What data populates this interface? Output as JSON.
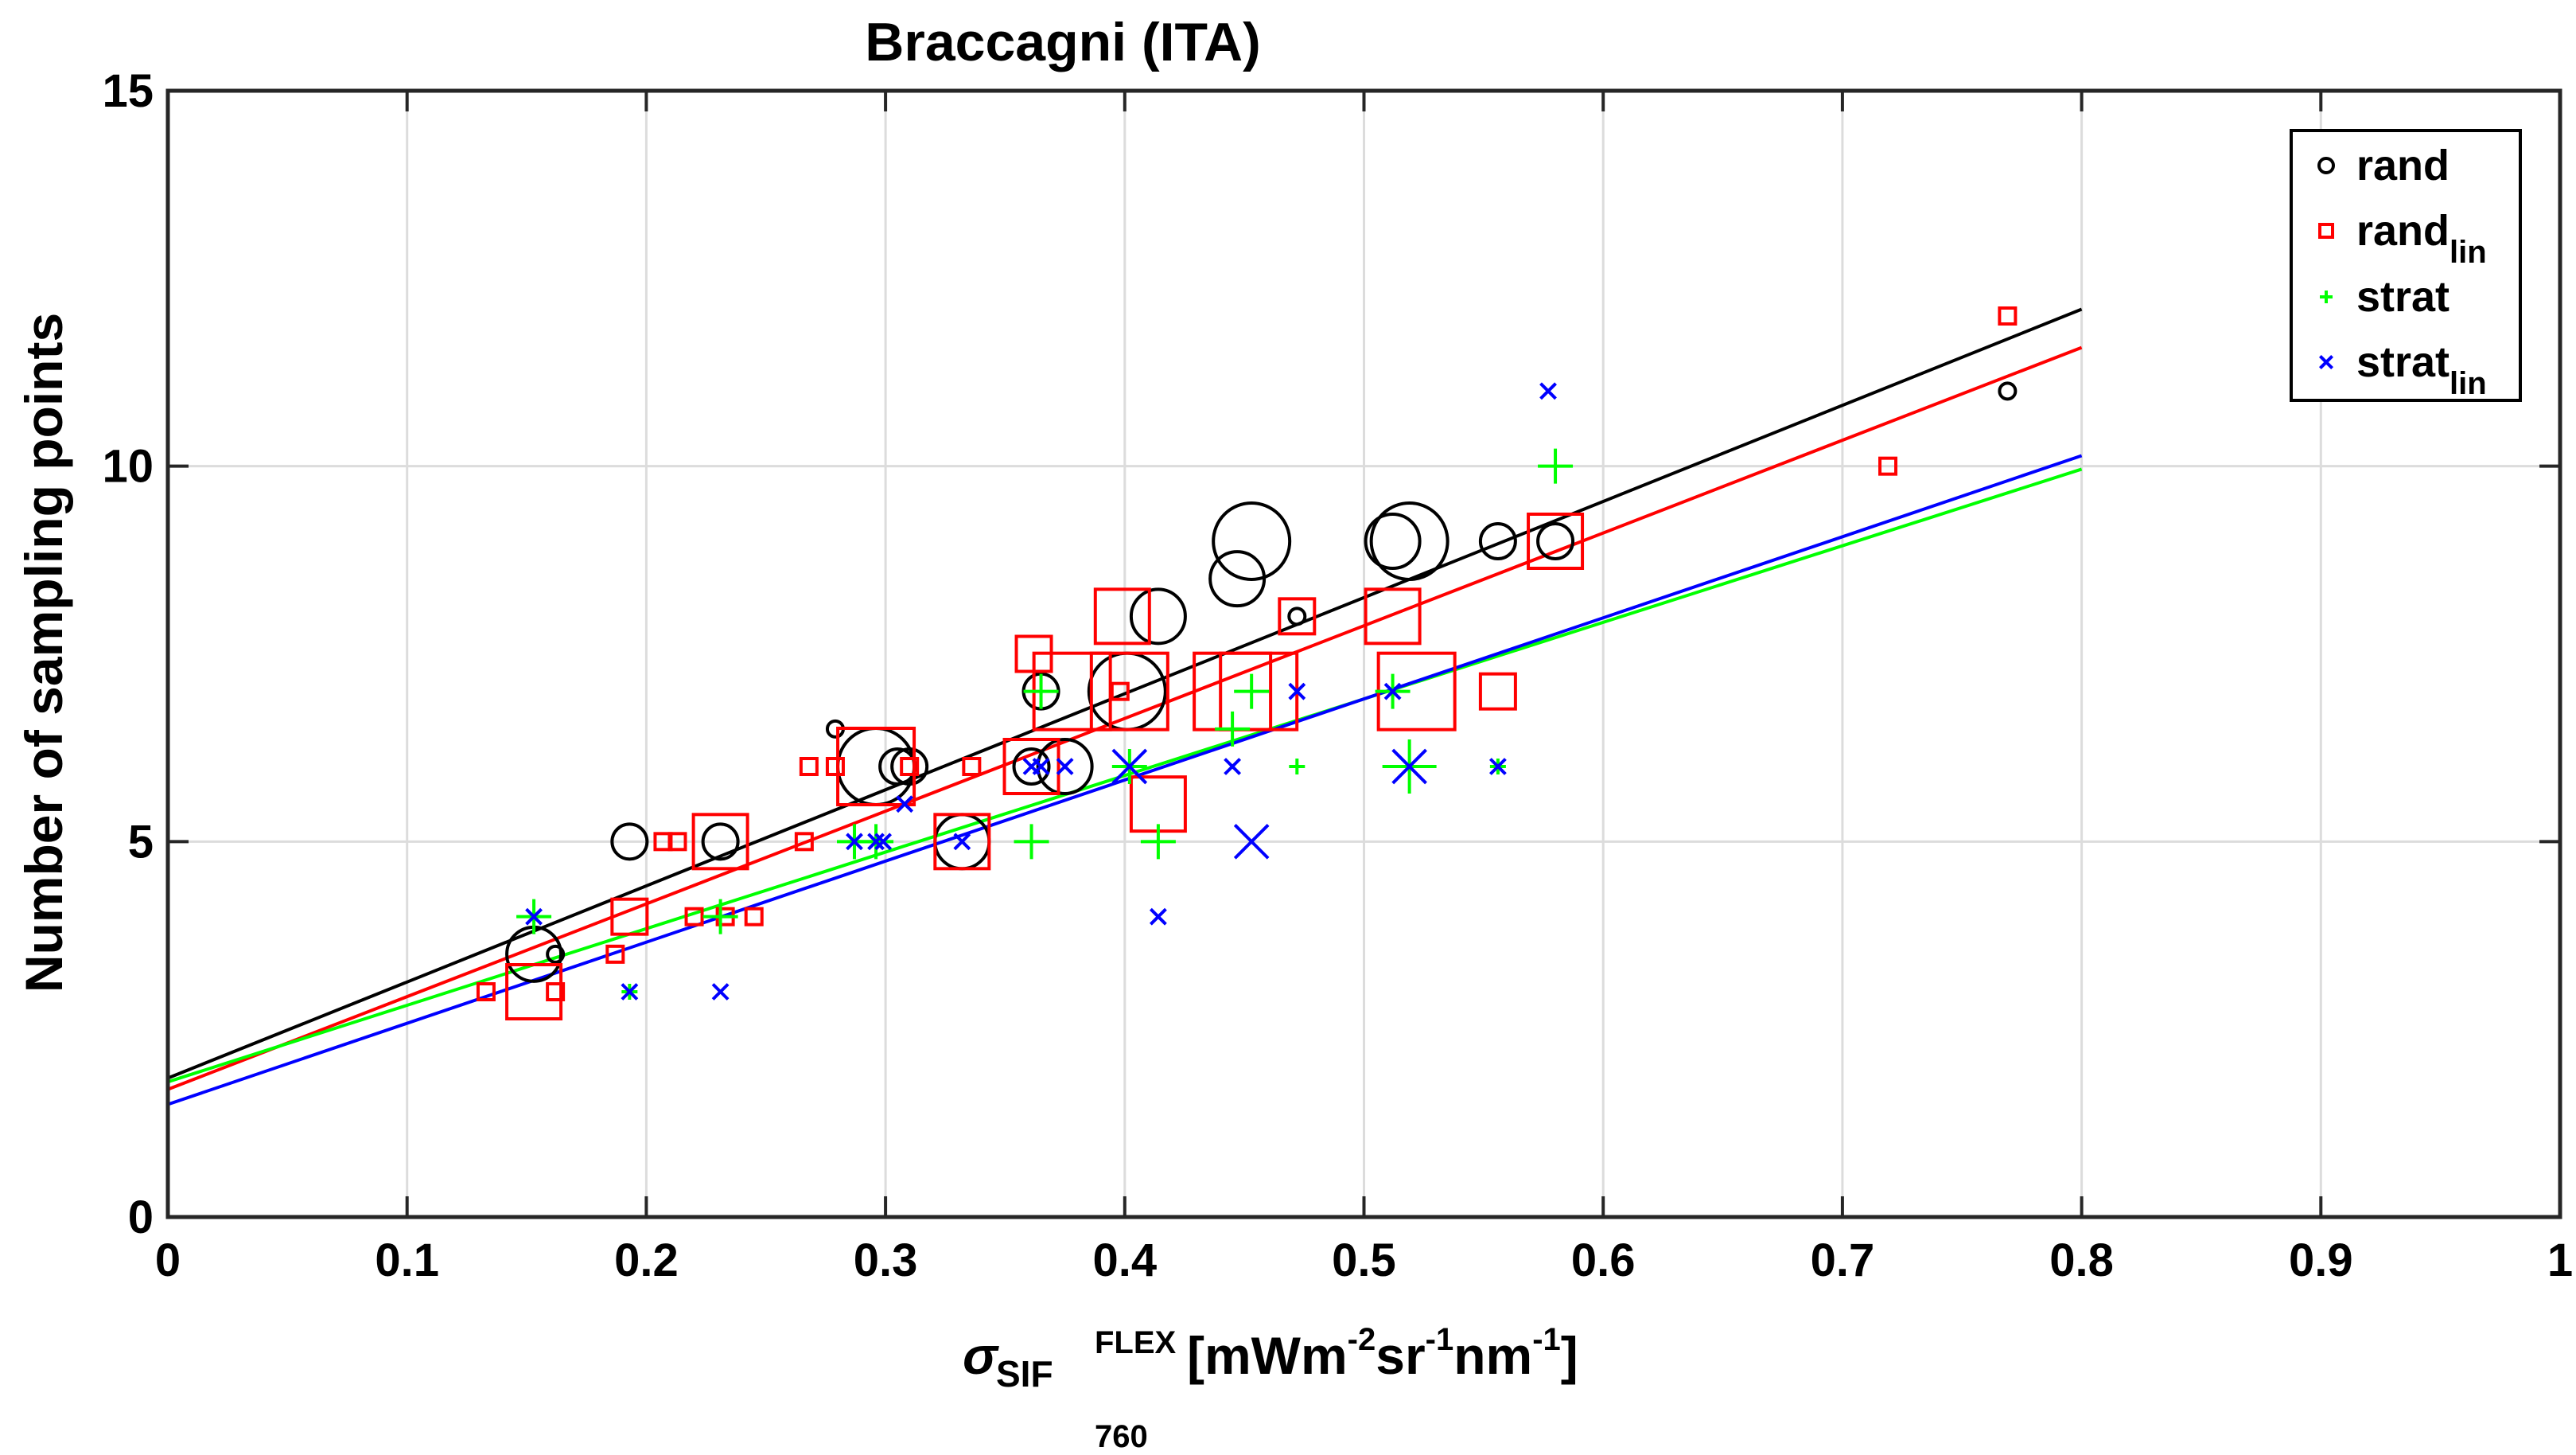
{
  "chart_data": {
    "type": "scatter",
    "title": "Braccagni (ITA)",
    "ylabel": "Number of sampling points",
    "xlabel": {
      "sigma": "σ",
      "sif": "SIF",
      "sup": "FLEX",
      "sub": "760",
      "unit_open": " [mWm",
      "exp1": "-2",
      "sr": "sr",
      "exp2": "-1",
      "nm": "nm",
      "exp3": "-1",
      "unit_close": "]"
    },
    "xlim": [
      0,
      1
    ],
    "ylim": [
      0,
      15
    ],
    "xticks": [
      0,
      0.1,
      0.2,
      0.3,
      0.4,
      0.5,
      0.6,
      0.7,
      0.8,
      0.9,
      1
    ],
    "xtick_labels": [
      "0",
      "0.1",
      "0.2",
      "0.3",
      "0.4",
      "0.5",
      "0.6",
      "0.7",
      "0.8",
      "0.9",
      "1"
    ],
    "yticks": [
      0,
      5,
      10,
      15
    ],
    "ytick_labels": [
      "0",
      "5",
      "10",
      "15"
    ],
    "grid": true,
    "legend_position": "top-right",
    "series": [
      {
        "name": "rand",
        "sub": "",
        "marker": "circle",
        "color": "#000000",
        "fit": {
          "intercept": 1.85,
          "slope": 12.8,
          "x_range": [
            0,
            0.8
          ]
        },
        "points": [
          {
            "x": 0.153,
            "y": 3.5,
            "size": 3
          },
          {
            "x": 0.162,
            "y": 3.5,
            "size": 1
          },
          {
            "x": 0.193,
            "y": 5,
            "size": 2
          },
          {
            "x": 0.231,
            "y": 5,
            "size": 2
          },
          {
            "x": 0.279,
            "y": 6.5,
            "size": 1
          },
          {
            "x": 0.296,
            "y": 6,
            "size": 4
          },
          {
            "x": 0.305,
            "y": 6,
            "size": 2
          },
          {
            "x": 0.31,
            "y": 6,
            "size": 2
          },
          {
            "x": 0.332,
            "y": 5,
            "size": 3
          },
          {
            "x": 0.361,
            "y": 6,
            "size": 2
          },
          {
            "x": 0.365,
            "y": 7,
            "size": 2
          },
          {
            "x": 0.375,
            "y": 6,
            "size": 3
          },
          {
            "x": 0.401,
            "y": 7,
            "size": 4
          },
          {
            "x": 0.414,
            "y": 8,
            "size": 3
          },
          {
            "x": 0.447,
            "y": 8.5,
            "size": 3
          },
          {
            "x": 0.453,
            "y": 9,
            "size": 4
          },
          {
            "x": 0.472,
            "y": 8,
            "size": 1
          },
          {
            "x": 0.512,
            "y": 9,
            "size": 3
          },
          {
            "x": 0.519,
            "y": 9,
            "size": 4
          },
          {
            "x": 0.556,
            "y": 9,
            "size": 2
          },
          {
            "x": 0.58,
            "y": 9,
            "size": 2
          },
          {
            "x": 0.769,
            "y": 11,
            "size": 1
          }
        ]
      },
      {
        "name": "rand",
        "sub": "lin",
        "marker": "square",
        "color": "#ff0000",
        "fit": {
          "intercept": 1.7,
          "slope": 12.35,
          "x_range": [
            0,
            0.8
          ]
        },
        "points": [
          {
            "x": 0.133,
            "y": 3,
            "size": 1
          },
          {
            "x": 0.153,
            "y": 3,
            "size": 3
          },
          {
            "x": 0.162,
            "y": 3,
            "size": 1
          },
          {
            "x": 0.187,
            "y": 3.5,
            "size": 1
          },
          {
            "x": 0.193,
            "y": 4,
            "size": 2
          },
          {
            "x": 0.207,
            "y": 5,
            "size": 1
          },
          {
            "x": 0.213,
            "y": 5,
            "size": 1
          },
          {
            "x": 0.22,
            "y": 4,
            "size": 1
          },
          {
            "x": 0.231,
            "y": 5,
            "size": 3
          },
          {
            "x": 0.233,
            "y": 4,
            "size": 1
          },
          {
            "x": 0.245,
            "y": 4,
            "size": 1
          },
          {
            "x": 0.266,
            "y": 5,
            "size": 1
          },
          {
            "x": 0.268,
            "y": 6,
            "size": 1
          },
          {
            "x": 0.279,
            "y": 6,
            "size": 1
          },
          {
            "x": 0.296,
            "y": 6,
            "size": 4
          },
          {
            "x": 0.31,
            "y": 6,
            "size": 1
          },
          {
            "x": 0.332,
            "y": 5,
            "size": 3
          },
          {
            "x": 0.336,
            "y": 6,
            "size": 1
          },
          {
            "x": 0.361,
            "y": 6,
            "size": 3
          },
          {
            "x": 0.362,
            "y": 7.5,
            "size": 2
          },
          {
            "x": 0.378,
            "y": 7,
            "size": 4
          },
          {
            "x": 0.398,
            "y": 7,
            "size": 1
          },
          {
            "x": 0.399,
            "y": 8,
            "size": 3
          },
          {
            "x": 0.402,
            "y": 7,
            "size": 4
          },
          {
            "x": 0.414,
            "y": 5.5,
            "size": 3
          },
          {
            "x": 0.445,
            "y": 7,
            "size": 4
          },
          {
            "x": 0.456,
            "y": 7,
            "size": 4
          },
          {
            "x": 0.472,
            "y": 8,
            "size": 2
          },
          {
            "x": 0.512,
            "y": 8,
            "size": 3
          },
          {
            "x": 0.522,
            "y": 7,
            "size": 4
          },
          {
            "x": 0.556,
            "y": 7,
            "size": 2
          },
          {
            "x": 0.58,
            "y": 9,
            "size": 3
          },
          {
            "x": 0.719,
            "y": 10,
            "size": 1
          },
          {
            "x": 0.769,
            "y": 12,
            "size": 1
          }
        ]
      },
      {
        "name": "strat",
        "sub": "",
        "marker": "plus",
        "color": "#00ff00",
        "fit": {
          "intercept": 1.8,
          "slope": 10.2,
          "x_range": [
            0,
            0.8
          ]
        },
        "points": [
          {
            "x": 0.153,
            "y": 4,
            "size": 2
          },
          {
            "x": 0.193,
            "y": 3,
            "size": 1
          },
          {
            "x": 0.231,
            "y": 4,
            "size": 2
          },
          {
            "x": 0.287,
            "y": 5,
            "size": 2
          },
          {
            "x": 0.296,
            "y": 5,
            "size": 2
          },
          {
            "x": 0.361,
            "y": 5,
            "size": 2
          },
          {
            "x": 0.365,
            "y": 7,
            "size": 2
          },
          {
            "x": 0.402,
            "y": 6,
            "size": 2
          },
          {
            "x": 0.414,
            "y": 5,
            "size": 2
          },
          {
            "x": 0.445,
            "y": 6.5,
            "size": 2
          },
          {
            "x": 0.453,
            "y": 7,
            "size": 2
          },
          {
            "x": 0.472,
            "y": 6,
            "size": 1
          },
          {
            "x": 0.512,
            "y": 7,
            "size": 2
          },
          {
            "x": 0.519,
            "y": 6,
            "size": 3
          },
          {
            "x": 0.556,
            "y": 6,
            "size": 1
          },
          {
            "x": 0.58,
            "y": 10,
            "size": 2
          }
        ]
      },
      {
        "name": "strat",
        "sub": "lin",
        "marker": "cross",
        "color": "#0000ff",
        "fit": {
          "intercept": 1.5,
          "slope": 10.8,
          "x_range": [
            0,
            0.8
          ]
        },
        "points": [
          {
            "x": 0.153,
            "y": 4,
            "size": 1
          },
          {
            "x": 0.193,
            "y": 3,
            "size": 1
          },
          {
            "x": 0.231,
            "y": 3,
            "size": 1
          },
          {
            "x": 0.287,
            "y": 5,
            "size": 1
          },
          {
            "x": 0.296,
            "y": 5,
            "size": 1
          },
          {
            "x": 0.299,
            "y": 5,
            "size": 1
          },
          {
            "x": 0.308,
            "y": 5.5,
            "size": 1
          },
          {
            "x": 0.332,
            "y": 5,
            "size": 1
          },
          {
            "x": 0.361,
            "y": 6,
            "size": 1
          },
          {
            "x": 0.365,
            "y": 6,
            "size": 1
          },
          {
            "x": 0.375,
            "y": 6,
            "size": 1
          },
          {
            "x": 0.402,
            "y": 6,
            "size": 2
          },
          {
            "x": 0.414,
            "y": 4,
            "size": 1
          },
          {
            "x": 0.445,
            "y": 6,
            "size": 1
          },
          {
            "x": 0.453,
            "y": 5,
            "size": 2
          },
          {
            "x": 0.472,
            "y": 7,
            "size": 1
          },
          {
            "x": 0.512,
            "y": 7,
            "size": 1
          },
          {
            "x": 0.519,
            "y": 6,
            "size": 2
          },
          {
            "x": 0.556,
            "y": 6,
            "size": 1
          },
          {
            "x": 0.577,
            "y": 11,
            "size": 1
          }
        ]
      }
    ]
  }
}
